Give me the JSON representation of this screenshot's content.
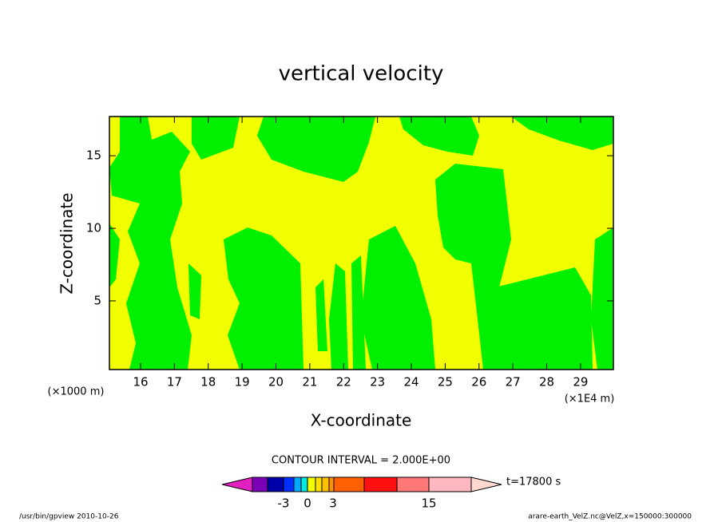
{
  "chart_data": {
    "type": "contour",
    "title": "vertical velocity",
    "x_label": "X-coordinate",
    "y_label": "Z-coordinate",
    "x_unit": "(×1E4 m)",
    "y_unit": "(×1000 m)",
    "xlim": [
      15.08,
      29.97
    ],
    "xticks": [
      16,
      17,
      18,
      19,
      20,
      21,
      22,
      23,
      24,
      25,
      26,
      27,
      28,
      29
    ],
    "ylim": [
      0.27,
      17.7
    ],
    "yticks": [
      5,
      10,
      15
    ],
    "region_colors": [
      "#f2ff00",
      "#00f000"
    ],
    "contour_interval": "CONTOUR INTERVAL = 2.000E+00",
    "time_label": "t=17800 s",
    "colorbar": {
      "colors": [
        "#e020c0",
        "#7a00b8",
        "#0000a8",
        "#0030ff",
        "#00a8ff",
        "#00e8e0",
        "#f2ff00",
        "#ffe000",
        "#ffc000",
        "#ff9000",
        "#ff6000",
        "#ff1010",
        "#ff7878",
        "#ffb8c0",
        "#ffd8d0"
      ],
      "ticks": [
        -3,
        0,
        3,
        15
      ]
    },
    "footer_left": "/usr/bin/gpview  2010-10-26",
    "footer_right": "arare-earth_VelZ.nc@VelZ,x=150000:300000"
  }
}
